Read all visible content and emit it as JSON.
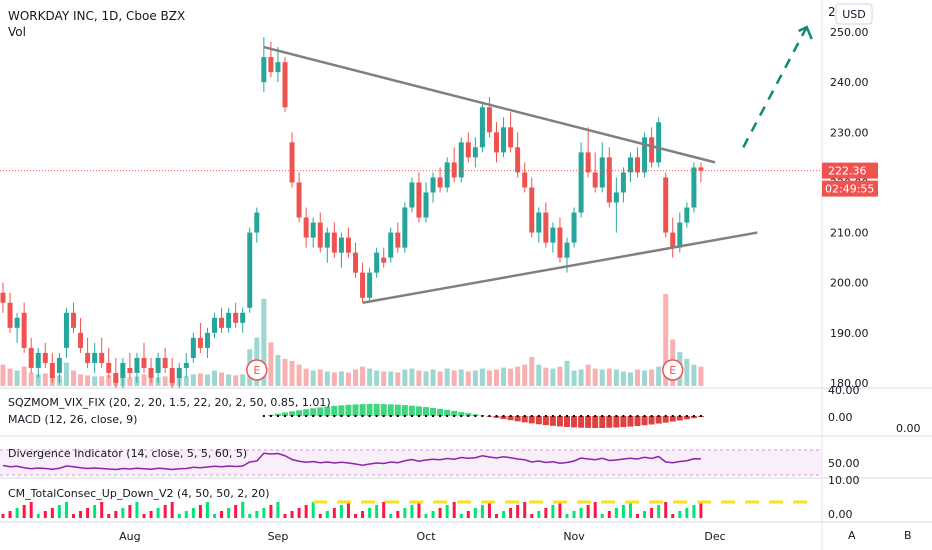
{
  "header": {
    "title": "WORKDAY INC, 1D, Cboe BZX",
    "volume_label": "Vol",
    "currency_button": "USD",
    "top_partial_label": "2"
  },
  "price_axis": {
    "ticks": [
      "250.00",
      "240.00",
      "230.00",
      "220.00",
      "210.00",
      "200.00",
      "190.00",
      "180.00"
    ],
    "current_price": "222.36",
    "countdown": "02:49:55"
  },
  "indicators": {
    "sqzmom_label": "SQZMOM_VIX_FIX (20, 2, 20, 1.5, 22, 20, 2, 50, 0.85, 1.01)",
    "macd_label": "MACD (12, 26, close, 9)",
    "sqz_axis_top": "40.00",
    "sqz_axis_zero": "0.00",
    "macd_axis_zero": "0.00",
    "div_label": "Divergence Indicator (14, close, 5, 5, 60, 5)",
    "div_axis": "50.00",
    "cm_label": "CM_TotalConsec_Up_Down_V2 (4, 50, 50, 2, 20)",
    "cm_axis_top": "10.00",
    "cm_axis_zero": "0.00"
  },
  "earnings_marker": "E",
  "x_axis": {
    "months": [
      "Aug",
      "Sep",
      "Oct",
      "Nov",
      "Dec"
    ]
  },
  "bottom_buttons": {
    "auto": "A",
    "bar_style": "B"
  },
  "colors": {
    "up": "#26a69a",
    "down": "#ef5350",
    "trendline": "#808080",
    "projection": "#0e8a77",
    "price_tag": "#ef5350",
    "divergence": "#8e24aa",
    "cm_yellow": "#f9e01e"
  },
  "chart_data": {
    "type": "candlestick",
    "title": "WORKDAY INC, 1D, Cboe BZX",
    "ylim": [
      178,
      254
    ],
    "candles": [
      {
        "o": 198,
        "h": 200,
        "l": 194,
        "c": 196
      },
      {
        "o": 196,
        "h": 198,
        "l": 190,
        "c": 191
      },
      {
        "o": 191,
        "h": 194,
        "l": 188,
        "c": 193
      },
      {
        "o": 194,
        "h": 196,
        "l": 186,
        "c": 187
      },
      {
        "o": 187,
        "h": 189,
        "l": 182,
        "c": 183
      },
      {
        "o": 183,
        "h": 187,
        "l": 181,
        "c": 186
      },
      {
        "o": 186,
        "h": 188,
        "l": 183,
        "c": 184
      },
      {
        "o": 184,
        "h": 186,
        "l": 180,
        "c": 181
      },
      {
        "o": 182,
        "h": 186,
        "l": 180,
        "c": 185
      },
      {
        "o": 187,
        "h": 195,
        "l": 185,
        "c": 194
      },
      {
        "o": 194,
        "h": 196,
        "l": 190,
        "c": 191
      },
      {
        "o": 190,
        "h": 193,
        "l": 186,
        "c": 187
      },
      {
        "o": 186,
        "h": 189,
        "l": 183,
        "c": 184
      },
      {
        "o": 184,
        "h": 188,
        "l": 182,
        "c": 186
      },
      {
        "o": 186,
        "h": 189,
        "l": 183,
        "c": 184
      },
      {
        "o": 184,
        "h": 187,
        "l": 181,
        "c": 182
      },
      {
        "o": 182,
        "h": 185,
        "l": 179,
        "c": 180
      },
      {
        "o": 181,
        "h": 185,
        "l": 179,
        "c": 184
      },
      {
        "o": 183,
        "h": 186,
        "l": 181,
        "c": 182
      },
      {
        "o": 182,
        "h": 186,
        "l": 180,
        "c": 185
      },
      {
        "o": 185,
        "h": 188,
        "l": 182,
        "c": 183
      },
      {
        "o": 183,
        "h": 185,
        "l": 180,
        "c": 181
      },
      {
        "o": 182,
        "h": 186,
        "l": 180,
        "c": 185
      },
      {
        "o": 185,
        "h": 187,
        "l": 182,
        "c": 183
      },
      {
        "o": 183,
        "h": 185,
        "l": 179,
        "c": 180
      },
      {
        "o": 181,
        "h": 184,
        "l": 179,
        "c": 183
      },
      {
        "o": 183,
        "h": 186,
        "l": 181,
        "c": 184
      },
      {
        "o": 185,
        "h": 190,
        "l": 184,
        "c": 189
      },
      {
        "o": 189,
        "h": 192,
        "l": 186,
        "c": 187
      },
      {
        "o": 187,
        "h": 191,
        "l": 185,
        "c": 190
      },
      {
        "o": 190,
        "h": 194,
        "l": 189,
        "c": 193
      },
      {
        "o": 193,
        "h": 195,
        "l": 190,
        "c": 191
      },
      {
        "o": 191,
        "h": 195,
        "l": 190,
        "c": 194
      },
      {
        "o": 194,
        "h": 196,
        "l": 191,
        "c": 192
      },
      {
        "o": 192,
        "h": 195,
        "l": 190,
        "c": 194
      },
      {
        "o": 195,
        "h": 211,
        "l": 194,
        "c": 210
      },
      {
        "o": 210,
        "h": 215,
        "l": 208,
        "c": 214
      },
      {
        "o": 240,
        "h": 249,
        "l": 238,
        "c": 245
      },
      {
        "o": 245,
        "h": 248,
        "l": 241,
        "c": 242
      },
      {
        "o": 242,
        "h": 247,
        "l": 240,
        "c": 244
      },
      {
        "o": 244,
        "h": 245,
        "l": 234,
        "c": 235
      },
      {
        "o": 228,
        "h": 230,
        "l": 219,
        "c": 220
      },
      {
        "o": 220,
        "h": 222,
        "l": 212,
        "c": 213
      },
      {
        "o": 213,
        "h": 215,
        "l": 207,
        "c": 209
      },
      {
        "o": 209,
        "h": 213,
        "l": 207,
        "c": 212
      },
      {
        "o": 212,
        "h": 214,
        "l": 206,
        "c": 207
      },
      {
        "o": 207,
        "h": 211,
        "l": 204,
        "c": 210
      },
      {
        "o": 210,
        "h": 212,
        "l": 205,
        "c": 206
      },
      {
        "o": 206,
        "h": 210,
        "l": 203,
        "c": 209
      },
      {
        "o": 209,
        "h": 211,
        "l": 205,
        "c": 206
      },
      {
        "o": 206,
        "h": 208,
        "l": 201,
        "c": 202
      },
      {
        "o": 202,
        "h": 204,
        "l": 196,
        "c": 197
      },
      {
        "o": 197,
        "h": 203,
        "l": 196,
        "c": 202
      },
      {
        "o": 202,
        "h": 207,
        "l": 201,
        "c": 206
      },
      {
        "o": 205,
        "h": 207,
        "l": 203,
        "c": 204
      },
      {
        "o": 205,
        "h": 211,
        "l": 204,
        "c": 210
      },
      {
        "o": 210,
        "h": 212,
        "l": 206,
        "c": 207
      },
      {
        "o": 207,
        "h": 216,
        "l": 206,
        "c": 215
      },
      {
        "o": 215,
        "h": 221,
        "l": 214,
        "c": 220
      },
      {
        "o": 220,
        "h": 222,
        "l": 212,
        "c": 213
      },
      {
        "o": 213,
        "h": 220,
        "l": 212,
        "c": 218
      },
      {
        "o": 218,
        "h": 222,
        "l": 216,
        "c": 221
      },
      {
        "o": 221,
        "h": 223,
        "l": 218,
        "c": 219
      },
      {
        "o": 219,
        "h": 225,
        "l": 218,
        "c": 224
      },
      {
        "o": 224,
        "h": 227,
        "l": 220,
        "c": 221
      },
      {
        "o": 221,
        "h": 229,
        "l": 220,
        "c": 228
      },
      {
        "o": 228,
        "h": 230,
        "l": 224,
        "c": 225
      },
      {
        "o": 225,
        "h": 229,
        "l": 223,
        "c": 227
      },
      {
        "o": 227,
        "h": 236,
        "l": 226,
        "c": 235
      },
      {
        "o": 235,
        "h": 237,
        "l": 229,
        "c": 230
      },
      {
        "o": 230,
        "h": 232,
        "l": 224,
        "c": 226
      },
      {
        "o": 226,
        "h": 233,
        "l": 225,
        "c": 231
      },
      {
        "o": 231,
        "h": 234,
        "l": 226,
        "c": 227
      },
      {
        "o": 227,
        "h": 230,
        "l": 221,
        "c": 222
      },
      {
        "o": 222,
        "h": 224,
        "l": 218,
        "c": 219
      },
      {
        "o": 219,
        "h": 221,
        "l": 209,
        "c": 210
      },
      {
        "o": 210,
        "h": 215,
        "l": 208,
        "c": 214
      },
      {
        "o": 214,
        "h": 216,
        "l": 207,
        "c": 208
      },
      {
        "o": 208,
        "h": 212,
        "l": 206,
        "c": 211
      },
      {
        "o": 211,
        "h": 213,
        "l": 204,
        "c": 205
      },
      {
        "o": 205,
        "h": 209,
        "l": 202,
        "c": 208
      },
      {
        "o": 208,
        "h": 215,
        "l": 207,
        "c": 214
      },
      {
        "o": 214,
        "h": 228,
        "l": 213,
        "c": 226
      },
      {
        "o": 226,
        "h": 231,
        "l": 221,
        "c": 222
      },
      {
        "o": 222,
        "h": 226,
        "l": 218,
        "c": 219
      },
      {
        "o": 219,
        "h": 228,
        "l": 218,
        "c": 225
      },
      {
        "o": 225,
        "h": 227,
        "l": 215,
        "c": 216
      },
      {
        "o": 216,
        "h": 221,
        "l": 210,
        "c": 218
      },
      {
        "o": 218,
        "h": 223,
        "l": 216,
        "c": 222
      },
      {
        "o": 222,
        "h": 226,
        "l": 220,
        "c": 225
      },
      {
        "o": 225,
        "h": 227,
        "l": 221,
        "c": 222
      },
      {
        "o": 222,
        "h": 230,
        "l": 221,
        "c": 229
      },
      {
        "o": 229,
        "h": 231,
        "l": 223,
        "c": 224
      },
      {
        "o": 224,
        "h": 233,
        "l": 223,
        "c": 232
      },
      {
        "o": 221,
        "h": 222,
        "l": 209,
        "c": 210
      },
      {
        "o": 210,
        "h": 213,
        "l": 205,
        "c": 207
      },
      {
        "o": 207,
        "h": 214,
        "l": 206,
        "c": 212
      },
      {
        "o": 212,
        "h": 216,
        "l": 211,
        "c": 215
      },
      {
        "o": 215,
        "h": 224,
        "l": 214,
        "c": 223
      },
      {
        "o": 223,
        "h": 224,
        "l": 220,
        "c": 222.36
      }
    ],
    "volume": [
      22,
      18,
      16,
      20,
      14,
      12,
      13,
      12,
      11,
      24,
      16,
      12,
      11,
      10,
      10,
      11,
      9,
      10,
      9,
      10,
      12,
      11,
      9,
      10,
      9,
      9,
      10,
      12,
      13,
      12,
      16,
      14,
      12,
      11,
      12,
      38,
      50,
      90,
      45,
      32,
      28,
      26,
      22,
      18,
      16,
      17,
      15,
      14,
      15,
      14,
      17,
      20,
      18,
      16,
      15,
      15,
      14,
      17,
      18,
      16,
      15,
      17,
      15,
      18,
      16,
      17,
      15,
      16,
      18,
      16,
      17,
      19,
      18,
      20,
      22,
      30,
      22,
      19,
      18,
      20,
      26,
      16,
      17,
      22,
      18,
      17,
      18,
      17,
      15,
      14,
      17,
      16,
      17,
      20,
      95,
      48,
      35,
      28,
      22,
      20
    ],
    "trendlines": [
      {
        "from": {
          "i": 37,
          "v": 247.0
        },
        "to": {
          "i": 101,
          "v": 224.0
        }
      },
      {
        "from": {
          "i": 51,
          "v": 196.0
        },
        "to": {
          "i": 107,
          "v": 210.0
        }
      }
    ],
    "projection": {
      "from": {
        "i": 105,
        "v": 227.0
      },
      "to": {
        "i": 114,
        "v": 251.0
      }
    },
    "earnings_indices": [
      36,
      95
    ],
    "month_tick_indices": [
      18,
      39,
      60,
      81,
      101
    ]
  }
}
